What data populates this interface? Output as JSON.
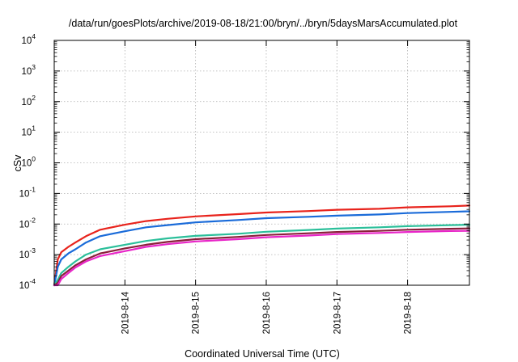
{
  "chart_data": {
    "type": "line",
    "title": "/data/run/goesPlots/archive/2019-08-18/21:00/bryn/../bryn/5daysMarsAccumulated.plot",
    "xlabel": "Coordinated Universal Time (UTC)",
    "ylabel": "cSv",
    "yscale": "log",
    "ylim": [
      0.0001,
      10000
    ],
    "xlim": [
      "2019-08-13 00:00",
      "2019-08-18 21:00"
    ],
    "yticks": [
      {
        "value": 0.0001,
        "base": "10",
        "exp": "-4"
      },
      {
        "value": 0.001,
        "base": "10",
        "exp": "-3"
      },
      {
        "value": 0.01,
        "base": "10",
        "exp": "-2"
      },
      {
        "value": 0.1,
        "base": "10",
        "exp": "-1"
      },
      {
        "value": 1,
        "base": "10",
        "exp": "0"
      },
      {
        "value": 10,
        "base": "10",
        "exp": "1"
      },
      {
        "value": 100,
        "base": "10",
        "exp": "2"
      },
      {
        "value": 1000,
        "base": "10",
        "exp": "3"
      },
      {
        "value": 10000,
        "base": "10",
        "exp": "4"
      }
    ],
    "xticks": [
      "2019-8-14",
      "2019-8-15",
      "2019-8-16",
      "2019-8-17",
      "2019-8-18"
    ],
    "xtick_times": [
      "2019-08-14 00:00",
      "2019-08-15 00:00",
      "2019-08-16 00:00",
      "2019-08-17 00:00",
      "2019-08-18 00:00"
    ],
    "grid": true,
    "legend": "none",
    "series": [
      {
        "color": "#e8231c",
        "x": [
          "2019-08-13 00:00",
          "2019-08-13 01:12",
          "2019-08-13 02:24",
          "2019-08-13 04:48",
          "2019-08-13 07:12",
          "2019-08-13 10:48",
          "2019-08-13 15:36",
          "2019-08-14 00:00",
          "2019-08-14 07:12",
          "2019-08-14 14:24",
          "2019-08-15 00:00",
          "2019-08-15 14:24",
          "2019-08-16 00:00",
          "2019-08-16 14:24",
          "2019-08-17 00:00",
          "2019-08-17 14:24",
          "2019-08-18 00:00",
          "2019-08-18 14:24",
          "2019-08-18 21:00"
        ],
        "y": [
          0.0001,
          0.0007,
          0.0012,
          0.0018,
          0.0025,
          0.004,
          0.0065,
          0.0095,
          0.0125,
          0.0148,
          0.0178,
          0.021,
          0.0238,
          0.0265,
          0.0292,
          0.0315,
          0.035,
          0.038,
          0.04
        ]
      },
      {
        "color": "#1a6bd9",
        "x": [
          "2019-08-13 00:00",
          "2019-08-13 01:12",
          "2019-08-13 02:24",
          "2019-08-13 04:48",
          "2019-08-13 07:12",
          "2019-08-13 10:48",
          "2019-08-13 15:36",
          "2019-08-14 00:00",
          "2019-08-14 07:12",
          "2019-08-14 14:24",
          "2019-08-15 00:00",
          "2019-08-15 14:24",
          "2019-08-16 00:00",
          "2019-08-16 14:24",
          "2019-08-17 00:00",
          "2019-08-17 14:24",
          "2019-08-18 00:00",
          "2019-08-18 14:24",
          "2019-08-18 21:00"
        ],
        "y": [
          0.0001,
          0.0004,
          0.0007,
          0.0011,
          0.0015,
          0.0025,
          0.004,
          0.0058,
          0.0078,
          0.0092,
          0.0113,
          0.0135,
          0.0155,
          0.0172,
          0.0188,
          0.0205,
          0.0228,
          0.025,
          0.026
        ]
      },
      {
        "color": "#2bbf9a",
        "x": [
          "2019-08-13 00:00",
          "2019-08-13 01:12",
          "2019-08-13 02:24",
          "2019-08-13 04:48",
          "2019-08-13 07:12",
          "2019-08-13 10:48",
          "2019-08-13 15:36",
          "2019-08-14 00:00",
          "2019-08-14 07:12",
          "2019-08-14 14:24",
          "2019-08-15 00:00",
          "2019-08-15 14:24",
          "2019-08-16 00:00",
          "2019-08-16 14:24",
          "2019-08-17 00:00",
          "2019-08-17 14:24",
          "2019-08-18 00:00",
          "2019-08-18 14:24",
          "2019-08-18 21:00"
        ],
        "y": [
          0.0001,
          0.00015,
          0.00025,
          0.0004,
          0.0006,
          0.001,
          0.0015,
          0.0021,
          0.0028,
          0.0034,
          0.0041,
          0.0048,
          0.0056,
          0.0064,
          0.0071,
          0.0078,
          0.0085,
          0.0092,
          0.0095
        ]
      },
      {
        "color": "#8a1f3a",
        "x": [
          "2019-08-13 00:00",
          "2019-08-13 01:12",
          "2019-08-13 02:24",
          "2019-08-13 04:48",
          "2019-08-13 07:12",
          "2019-08-13 10:48",
          "2019-08-13 15:36",
          "2019-08-14 00:00",
          "2019-08-14 07:12",
          "2019-08-14 14:24",
          "2019-08-15 00:00",
          "2019-08-15 14:24",
          "2019-08-16 00:00",
          "2019-08-16 14:24",
          "2019-08-17 00:00",
          "2019-08-17 14:24",
          "2019-08-18 00:00",
          "2019-08-18 14:24",
          "2019-08-18 21:00"
        ],
        "y": [
          0.0001,
          0.00012,
          0.0002,
          0.0003,
          0.00045,
          0.0007,
          0.0011,
          0.0016,
          0.0021,
          0.0026,
          0.0032,
          0.0038,
          0.0044,
          0.005,
          0.0055,
          0.006,
          0.0065,
          0.007,
          0.0072
        ]
      },
      {
        "color": "#e825c8",
        "x": [
          "2019-08-13 00:00",
          "2019-08-13 01:12",
          "2019-08-13 02:24",
          "2019-08-13 04:48",
          "2019-08-13 07:12",
          "2019-08-13 10:48",
          "2019-08-13 15:36",
          "2019-08-14 00:00",
          "2019-08-14 07:12",
          "2019-08-14 14:24",
          "2019-08-15 00:00",
          "2019-08-15 14:24",
          "2019-08-16 00:00",
          "2019-08-16 14:24",
          "2019-08-17 00:00",
          "2019-08-17 14:24",
          "2019-08-18 00:00",
          "2019-08-18 14:24",
          "2019-08-18 21:00"
        ],
        "y": [
          0.0001,
          0.0001,
          0.00016,
          0.00025,
          0.00038,
          0.0006,
          0.0009,
          0.0013,
          0.0018,
          0.0022,
          0.0027,
          0.0032,
          0.0037,
          0.0042,
          0.0047,
          0.0051,
          0.0055,
          0.0059,
          0.006
        ]
      }
    ]
  }
}
